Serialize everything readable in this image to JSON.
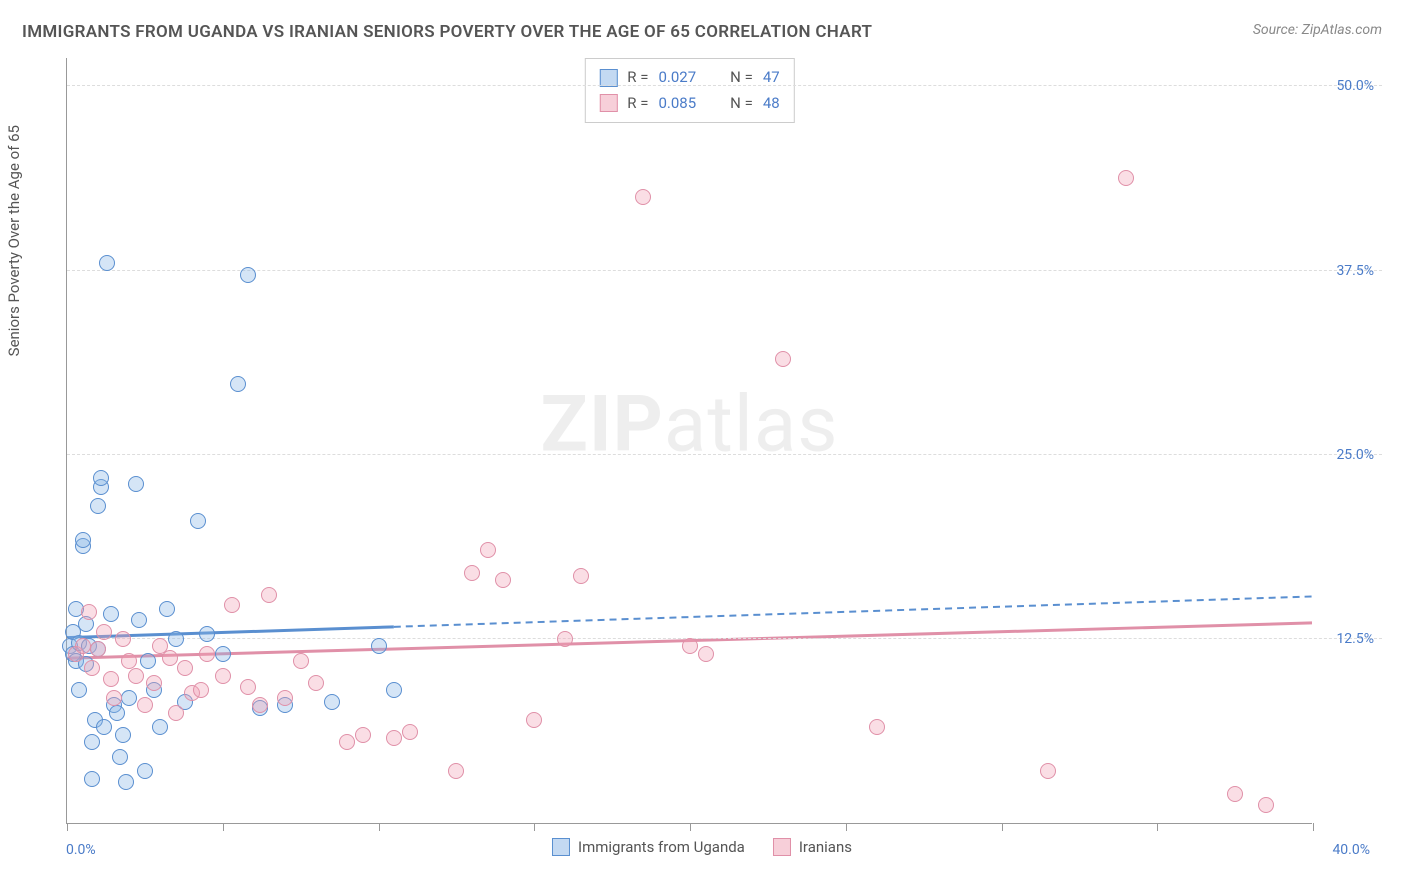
{
  "title": "IMMIGRANTS FROM UGANDA VS IRANIAN SENIORS POVERTY OVER THE AGE OF 65 CORRELATION CHART",
  "source": "Source: ZipAtlas.com",
  "watermark_bold": "ZIP",
  "watermark_light": "atlas",
  "y_axis_label": "Seniors Poverty Over the Age of 65",
  "x_min_label": "0.0%",
  "x_max_label": "40.0%",
  "chart": {
    "type": "scatter",
    "x_range": [
      0,
      40
    ],
    "y_range": [
      0,
      52
    ],
    "y_ticks": [
      12.5,
      25.0,
      37.5,
      50.0
    ],
    "y_tick_labels": [
      "12.5%",
      "25.0%",
      "37.5%",
      "50.0%"
    ],
    "x_ticks": [
      0,
      5,
      10,
      15,
      20,
      25,
      30,
      35,
      40
    ],
    "point_radius": 8,
    "background_color": "#ffffff",
    "grid_color": "#dddddd",
    "axis_color": "#999999",
    "tick_label_color": "#4a7bc8",
    "series": [
      {
        "name": "Immigrants from Uganda",
        "color_fill": "rgba(135,180,230,0.35)",
        "color_stroke": "#5a8fd0",
        "css_class": "blue",
        "R": 0.027,
        "N": 47,
        "trend": {
          "y_at_x0": 12.6,
          "y_at_x40": 15.4,
          "solid_until_x": 10.5
        },
        "points": [
          [
            0.1,
            12.0
          ],
          [
            0.2,
            11.5
          ],
          [
            0.2,
            13.0
          ],
          [
            0.3,
            11.0
          ],
          [
            0.3,
            14.5
          ],
          [
            0.4,
            12.2
          ],
          [
            0.4,
            9.0
          ],
          [
            0.5,
            18.8
          ],
          [
            0.5,
            19.2
          ],
          [
            0.6,
            13.5
          ],
          [
            0.6,
            10.8
          ],
          [
            0.7,
            12.0
          ],
          [
            0.8,
            5.5
          ],
          [
            0.8,
            3.0
          ],
          [
            0.9,
            7.0
          ],
          [
            1.0,
            21.5
          ],
          [
            1.0,
            11.8
          ],
          [
            1.1,
            22.8
          ],
          [
            1.1,
            23.4
          ],
          [
            1.2,
            6.5
          ],
          [
            1.3,
            38.0
          ],
          [
            1.4,
            14.2
          ],
          [
            1.5,
            8.0
          ],
          [
            1.6,
            7.5
          ],
          [
            1.7,
            4.5
          ],
          [
            1.8,
            6.0
          ],
          [
            1.9,
            2.8
          ],
          [
            2.0,
            8.5
          ],
          [
            2.2,
            23.0
          ],
          [
            2.3,
            13.8
          ],
          [
            2.5,
            3.5
          ],
          [
            2.6,
            11.0
          ],
          [
            2.8,
            9.0
          ],
          [
            3.0,
            6.5
          ],
          [
            3.2,
            14.5
          ],
          [
            3.5,
            12.5
          ],
          [
            3.8,
            8.2
          ],
          [
            4.2,
            20.5
          ],
          [
            4.5,
            12.8
          ],
          [
            5.0,
            11.5
          ],
          [
            5.5,
            29.8
          ],
          [
            6.2,
            7.8
          ],
          [
            7.0,
            8.0
          ],
          [
            8.5,
            8.2
          ],
          [
            10.0,
            12.0
          ],
          [
            10.5,
            9.0
          ],
          [
            5.8,
            37.2
          ]
        ]
      },
      {
        "name": "Iranians",
        "color_fill": "rgba(240,160,180,0.35)",
        "color_stroke": "#e090a8",
        "css_class": "pink",
        "R": 0.085,
        "N": 48,
        "trend": {
          "y_at_x0": 11.2,
          "y_at_x40": 13.6,
          "solid_until_x": 40
        },
        "points": [
          [
            0.3,
            11.5
          ],
          [
            0.5,
            12.0
          ],
          [
            0.7,
            14.3
          ],
          [
            0.8,
            10.5
          ],
          [
            1.0,
            11.8
          ],
          [
            1.2,
            13.0
          ],
          [
            1.4,
            9.8
          ],
          [
            1.5,
            8.5
          ],
          [
            1.8,
            12.5
          ],
          [
            2.0,
            11.0
          ],
          [
            2.2,
            10.0
          ],
          [
            2.5,
            8.0
          ],
          [
            2.8,
            9.5
          ],
          [
            3.0,
            12.0
          ],
          [
            3.3,
            11.2
          ],
          [
            3.5,
            7.5
          ],
          [
            3.8,
            10.5
          ],
          [
            4.0,
            8.8
          ],
          [
            4.3,
            9.0
          ],
          [
            4.5,
            11.5
          ],
          [
            5.0,
            10.0
          ],
          [
            5.3,
            14.8
          ],
          [
            5.8,
            9.2
          ],
          [
            6.2,
            8.0
          ],
          [
            6.5,
            15.5
          ],
          [
            7.0,
            8.5
          ],
          [
            7.5,
            11.0
          ],
          [
            8.0,
            9.5
          ],
          [
            9.0,
            5.5
          ],
          [
            9.5,
            6.0
          ],
          [
            10.5,
            5.8
          ],
          [
            11.0,
            6.2
          ],
          [
            12.5,
            3.5
          ],
          [
            13.0,
            17.0
          ],
          [
            13.5,
            18.5
          ],
          [
            14.0,
            16.5
          ],
          [
            15.0,
            7.0
          ],
          [
            16.0,
            12.5
          ],
          [
            16.5,
            16.8
          ],
          [
            18.5,
            42.5
          ],
          [
            20.0,
            12.0
          ],
          [
            20.5,
            11.5
          ],
          [
            23.0,
            31.5
          ],
          [
            26.0,
            6.5
          ],
          [
            31.5,
            3.5
          ],
          [
            34.0,
            43.8
          ],
          [
            37.5,
            2.0
          ],
          [
            38.5,
            1.2
          ]
        ]
      }
    ]
  },
  "stats_labels": {
    "R": "R =",
    "N": "N ="
  },
  "legend": [
    {
      "label": "Immigrants from Uganda",
      "class": "blue"
    },
    {
      "label": "Iranians",
      "class": "pink"
    }
  ]
}
